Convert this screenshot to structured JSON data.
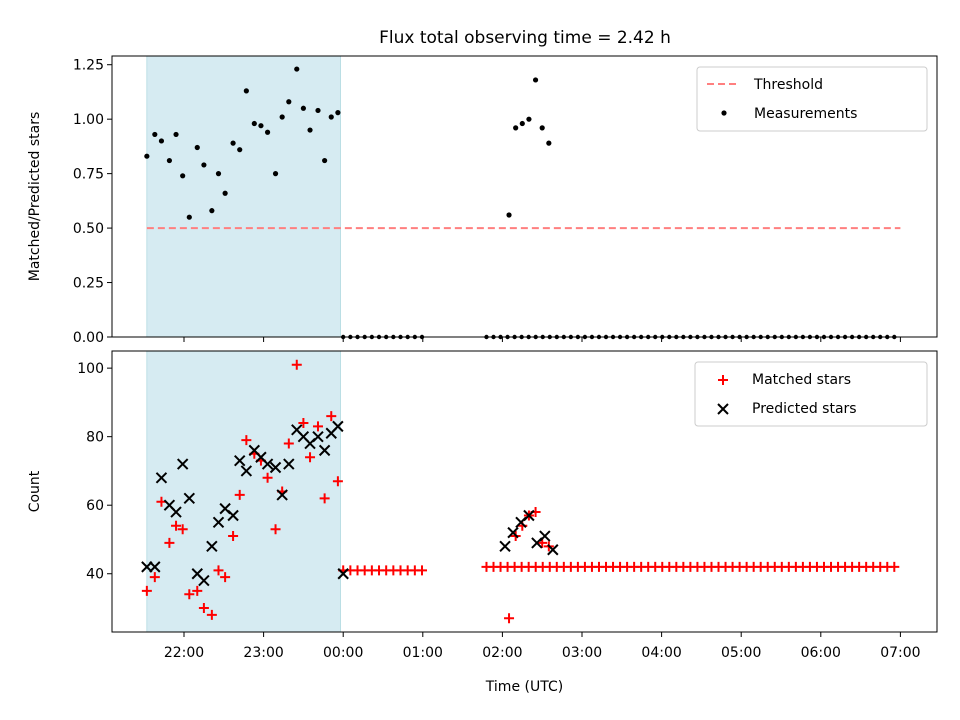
{
  "title": "Flux total observing time = 2.42 h",
  "chart_data": [
    {
      "type": "scatter",
      "ylabel": "Matched/Predicted stars",
      "xlabel": "",
      "ylim": [
        0,
        1.29
      ],
      "y_ticks": [
        0.0,
        0.25,
        0.5,
        0.75,
        1.0,
        1.25
      ],
      "y_tick_labels": [
        "0.00",
        "0.25",
        "0.50",
        "0.75",
        "1.00",
        "1.25"
      ],
      "threshold": 0.5,
      "threshold_span": [
        "21:32",
        "07:00"
      ],
      "shaded_span": [
        "21:32",
        "23:58"
      ],
      "legend": [
        "Threshold",
        "Measurements"
      ],
      "legend_position": "upper right",
      "series": [
        {
          "name": "Measurements",
          "x": [
            "21:32",
            "21:38",
            "21:43",
            "21:49",
            "21:54",
            "21:59",
            "22:04",
            "22:10",
            "22:15",
            "22:21",
            "22:26",
            "22:31",
            "22:37",
            "22:42",
            "22:47",
            "22:53",
            "22:58",
            "23:03",
            "23:09",
            "23:14",
            "23:19",
            "23:25",
            "23:30",
            "23:35",
            "23:41",
            "23:46",
            "23:51",
            "23:56"
          ],
          "y": [
            0.83,
            0.93,
            0.9,
            0.81,
            0.93,
            0.74,
            0.55,
            0.87,
            0.79,
            0.58,
            0.75,
            0.66,
            0.89,
            0.86,
            1.13,
            0.98,
            0.97,
            0.94,
            0.75,
            1.01,
            1.08,
            1.23,
            1.05,
            0.95,
            1.04,
            0.81,
            1.01,
            1.03
          ]
        }
      ]
    },
    {
      "type": "scatter",
      "ylabel": "Count",
      "xlabel": "Time (UTC)",
      "ylim": [
        23,
        105
      ],
      "y_ticks": [
        40,
        60,
        80,
        100
      ],
      "y_tick_labels": [
        "40",
        "60",
        "80",
        "100"
      ],
      "x_tick_labels": [
        "22:00",
        "23:00",
        "00:00",
        "01:00",
        "02:00",
        "03:00",
        "04:00",
        "05:00",
        "06:00",
        "07:00"
      ],
      "shaded_span": [
        "21:32",
        "23:58"
      ],
      "legend": [
        "Matched stars",
        "Predicted stars"
      ],
      "legend_position": "upper right",
      "series": [
        {
          "name": "Matched stars",
          "x": [
            "21:32",
            "21:38",
            "21:43",
            "21:49",
            "21:54",
            "21:59",
            "22:04",
            "22:10",
            "22:15",
            "22:21",
            "22:26",
            "22:31",
            "22:37",
            "22:42",
            "22:47",
            "22:53",
            "22:58",
            "23:03",
            "23:09",
            "23:14",
            "23:19",
            "23:25",
            "23:30",
            "23:35",
            "23:41",
            "23:46",
            "23:51",
            "23:56"
          ],
          "y": [
            35,
            39,
            61,
            49,
            54,
            53,
            34,
            35,
            30,
            28,
            41,
            39,
            51,
            63,
            79,
            75,
            73,
            68,
            53,
            64,
            78,
            101,
            84,
            74,
            83,
            62,
            86,
            67
          ]
        },
        {
          "name": "Predicted stars",
          "x": [
            "21:32",
            "21:38",
            "21:43",
            "21:49",
            "21:54",
            "21:59",
            "22:04",
            "22:10",
            "22:15",
            "22:21",
            "22:26",
            "22:31",
            "22:37",
            "22:42",
            "22:47",
            "22:53",
            "22:58",
            "23:03",
            "23:09",
            "23:14",
            "23:19",
            "23:25",
            "23:30",
            "23:35",
            "23:41",
            "23:46",
            "23:51",
            "23:56"
          ],
          "y": [
            42,
            42,
            68,
            60,
            58,
            72,
            62,
            40,
            38,
            48,
            55,
            59,
            57,
            73,
            70,
            76,
            74,
            72,
            71,
            63,
            72,
            82,
            80,
            78,
            80,
            76,
            81,
            83
          ]
        }
      ]
    }
  ]
}
